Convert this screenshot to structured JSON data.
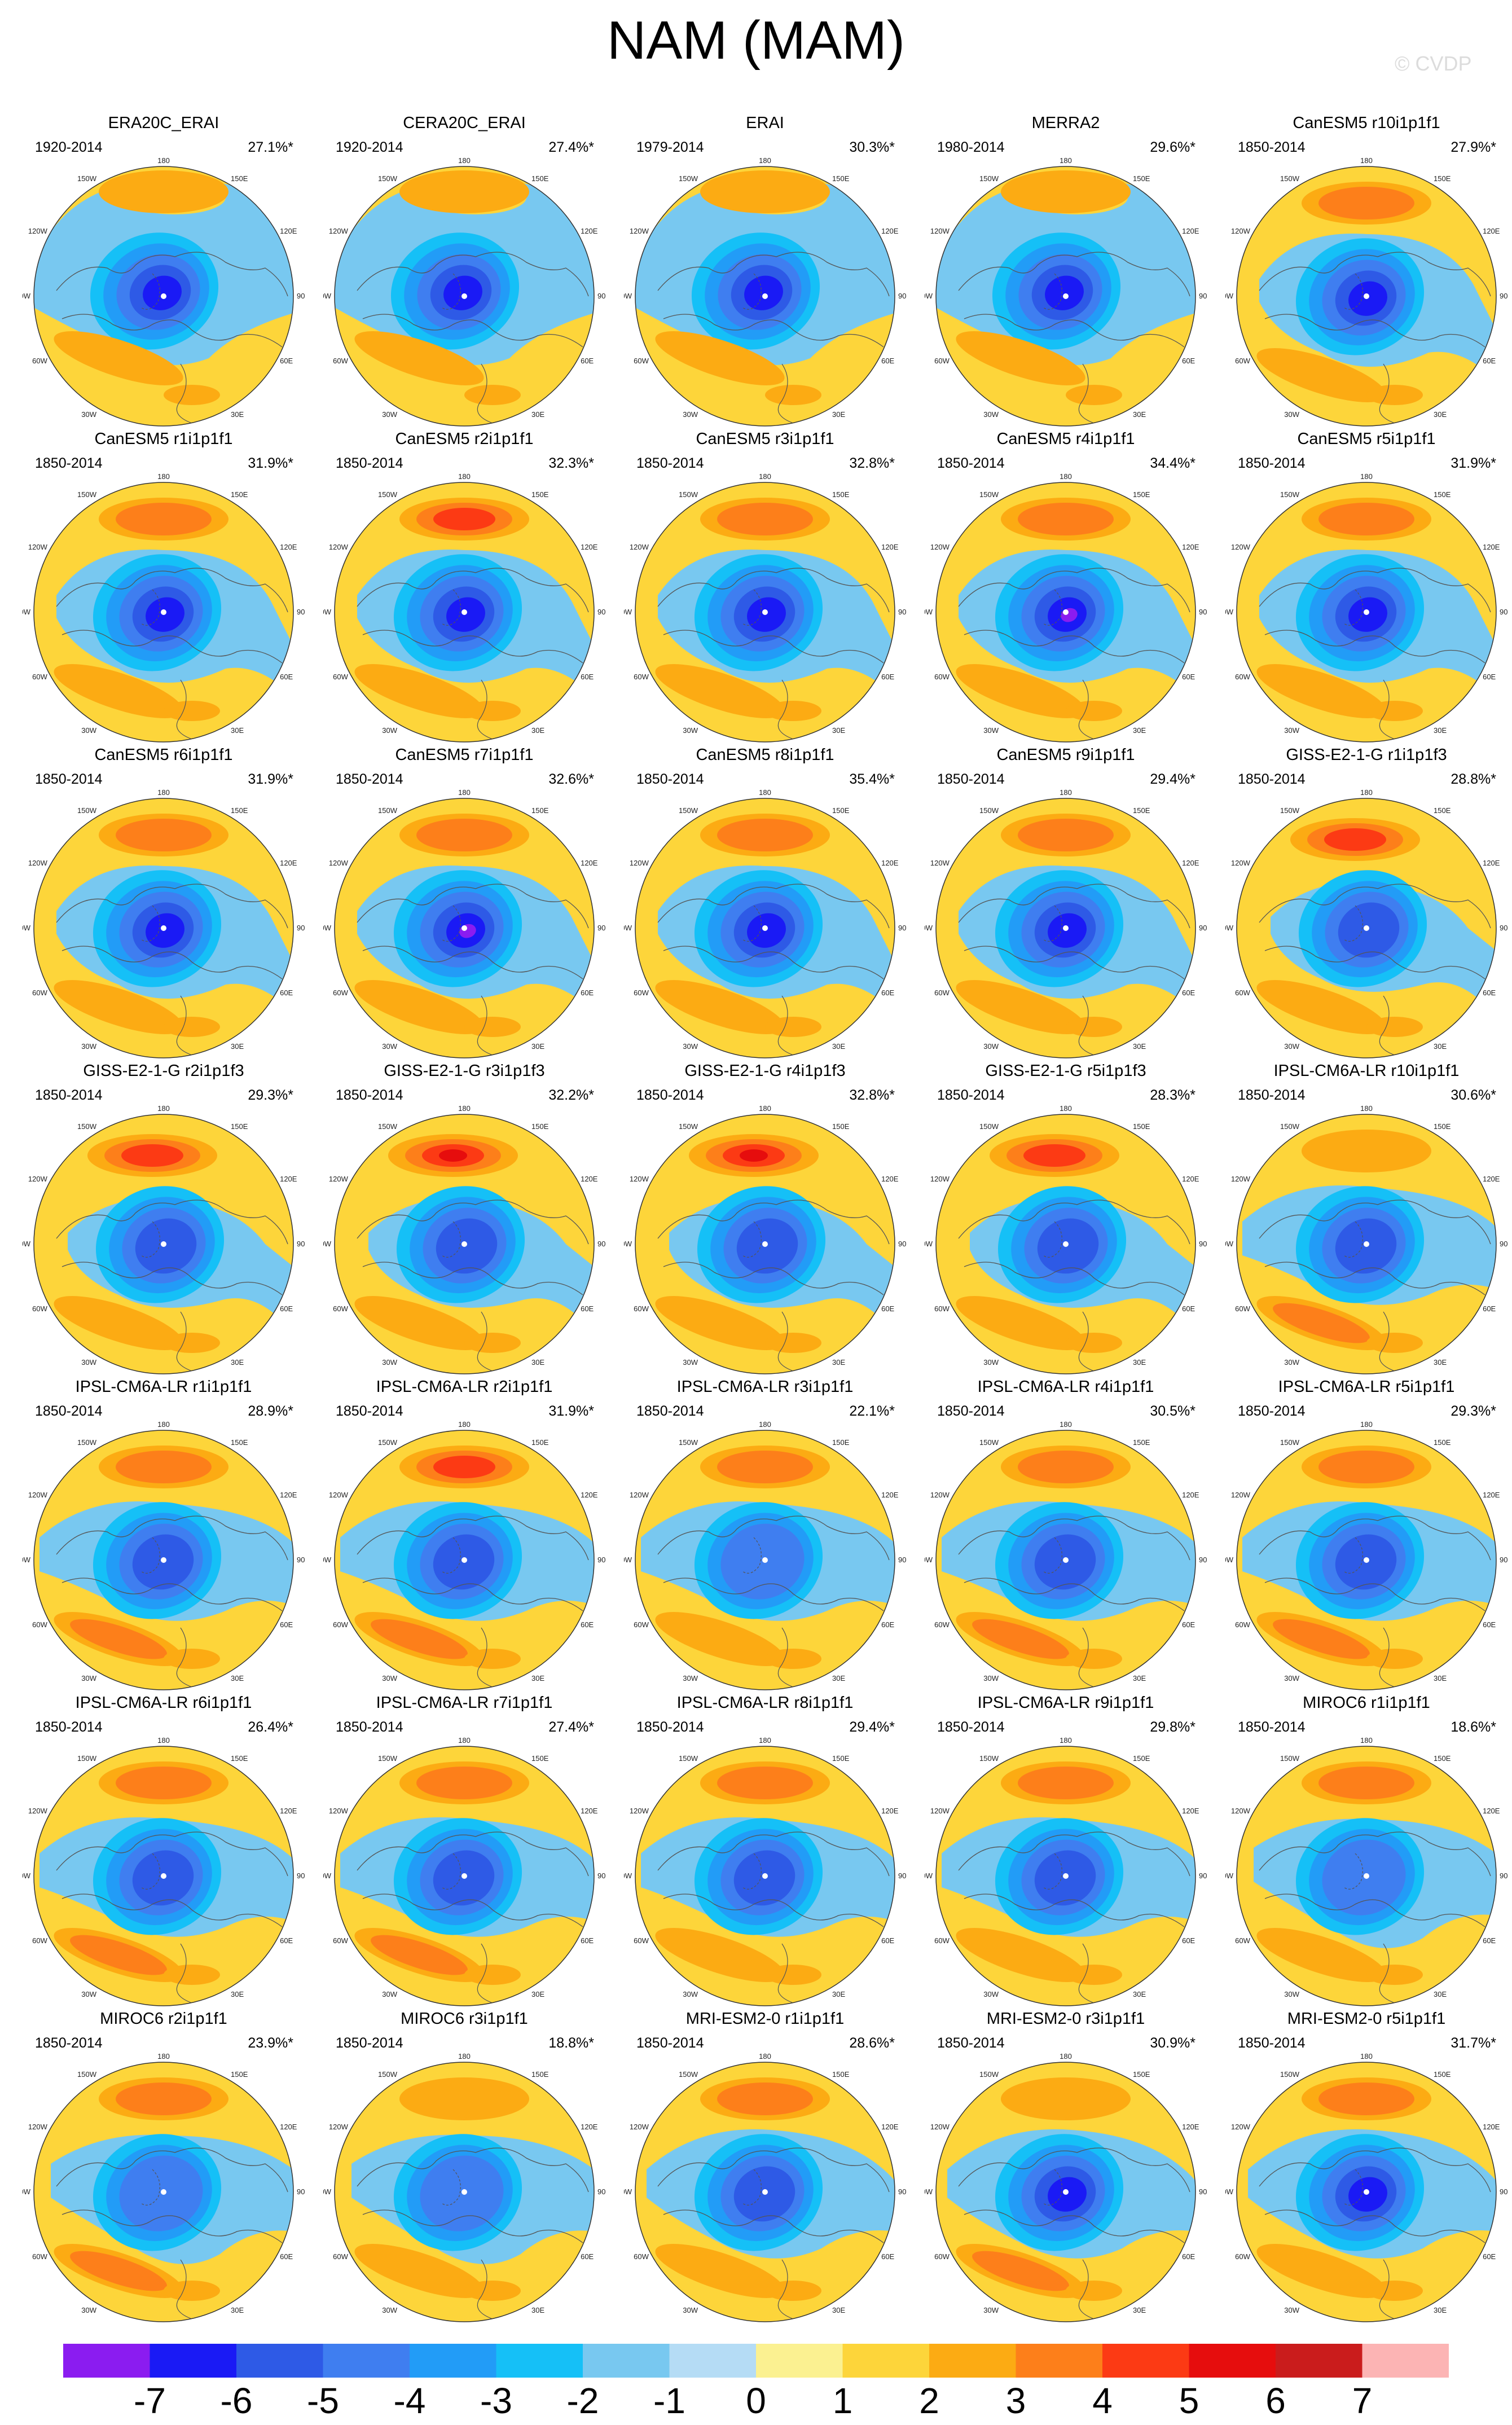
{
  "title": "NAM (MAM)",
  "watermark": "© CVDP",
  "map_labels": {
    "top": "180",
    "bottom": "0",
    "left": "90W",
    "right": "90E",
    "upper_left_1": "120W",
    "upper_left_2": "150W",
    "upper_right_1": "150E",
    "upper_right_2": "120E",
    "lower_left_1": "60W",
    "lower_left_2": "30W",
    "lower_right_1": "60E",
    "lower_right_2": "30E"
  },
  "colors": {
    "levels": [
      "#8b1cf0",
      "#1a1af5",
      "#2e5ae6",
      "#3f7ef0",
      "#229cf7",
      "#15c0f7",
      "#78c8f0",
      "#b5dcf5",
      "#fbf191",
      "#fdd53a",
      "#fcab13",
      "#fd7f1a",
      "#fc3a14",
      "#e60d0d",
      "#ca1c1c",
      "#fcb4b4"
    ],
    "contour": "#555555"
  },
  "colorbar": {
    "ticks": [
      "-7",
      "-6",
      "-5",
      "-4",
      "-3",
      "-2",
      "-1",
      "0",
      "1",
      "2",
      "3",
      "4",
      "5",
      "6",
      "7"
    ]
  },
  "panels": [
    {
      "name": "ERA20C_ERAI",
      "period": "1920-2014",
      "pct": "27.1%*",
      "core": -5,
      "pac": 1,
      "atl": 1,
      "shape": "obs"
    },
    {
      "name": "CERA20C_ERAI",
      "period": "1920-2014",
      "pct": "27.4%*",
      "core": -5,
      "pac": 1,
      "atl": 1,
      "shape": "obs"
    },
    {
      "name": "ERAI",
      "period": "1979-2014",
      "pct": "30.3%*",
      "core": -5,
      "pac": 1,
      "atl": 1,
      "shape": "obs"
    },
    {
      "name": "MERRA2",
      "period": "1980-2014",
      "pct": "29.6%*",
      "core": -5,
      "pac": 1,
      "atl": 1,
      "shape": "obs"
    },
    {
      "name": "CanESM5 r10i1p1f1",
      "period": "1850-2014",
      "pct": "27.9%*",
      "core": -5,
      "pac": 2,
      "atl": 1,
      "shape": "can"
    },
    {
      "name": "CanESM5 r1i1p1f1",
      "period": "1850-2014",
      "pct": "31.9%*",
      "core": -5,
      "pac": 2,
      "atl": 1,
      "shape": "can"
    },
    {
      "name": "CanESM5 r2i1p1f1",
      "period": "1850-2014",
      "pct": "32.3%*",
      "core": -5,
      "pac": 3,
      "atl": 1,
      "shape": "can"
    },
    {
      "name": "CanESM5 r3i1p1f1",
      "period": "1850-2014",
      "pct": "32.8%*",
      "core": -5,
      "pac": 2,
      "atl": 1,
      "shape": "can"
    },
    {
      "name": "CanESM5 r4i1p1f1",
      "period": "1850-2014",
      "pct": "34.4%*",
      "core": -6,
      "pac": 2,
      "atl": 1,
      "shape": "can"
    },
    {
      "name": "CanESM5 r5i1p1f1",
      "period": "1850-2014",
      "pct": "31.9%*",
      "core": -5,
      "pac": 2,
      "atl": 1,
      "shape": "can"
    },
    {
      "name": "CanESM5 r6i1p1f1",
      "period": "1850-2014",
      "pct": "31.9%*",
      "core": -5,
      "pac": 2,
      "atl": 1,
      "shape": "can"
    },
    {
      "name": "CanESM5 r7i1p1f1",
      "period": "1850-2014",
      "pct": "32.6%*",
      "core": -6,
      "pac": 2,
      "atl": 1,
      "shape": "can"
    },
    {
      "name": "CanESM5 r8i1p1f1",
      "period": "1850-2014",
      "pct": "35.4%*",
      "core": -5,
      "pac": 2,
      "atl": 1,
      "shape": "can"
    },
    {
      "name": "CanESM5 r9i1p1f1",
      "period": "1850-2014",
      "pct": "29.4%*",
      "core": -5,
      "pac": 2,
      "atl": 1,
      "shape": "can"
    },
    {
      "name": "GISS-E2-1-G r1i1p1f3",
      "period": "1850-2014",
      "pct": "28.8%*",
      "core": -4,
      "pac": 3,
      "atl": 1,
      "shape": "giss"
    },
    {
      "name": "GISS-E2-1-G r2i1p1f3",
      "period": "1850-2014",
      "pct": "29.3%*",
      "core": -4,
      "pac": 3,
      "atl": 1,
      "shape": "giss"
    },
    {
      "name": "GISS-E2-1-G r3i1p1f3",
      "period": "1850-2014",
      "pct": "32.2%*",
      "core": -4,
      "pac": 5,
      "atl": 1,
      "shape": "giss"
    },
    {
      "name": "GISS-E2-1-G r4i1p1f3",
      "period": "1850-2014",
      "pct": "32.8%*",
      "core": -4,
      "pac": 4,
      "atl": 1,
      "shape": "giss"
    },
    {
      "name": "GISS-E2-1-G r5i1p1f3",
      "period": "1850-2014",
      "pct": "28.3%*",
      "core": -4,
      "pac": 3,
      "atl": 1,
      "shape": "giss"
    },
    {
      "name": "IPSL-CM6A-LR r10i1p1f1",
      "period": "1850-2014",
      "pct": "30.6%*",
      "core": -4,
      "pac": 1,
      "atl": 2,
      "shape": "ipsl"
    },
    {
      "name": "IPSL-CM6A-LR r1i1p1f1",
      "period": "1850-2014",
      "pct": "28.9%*",
      "core": -4,
      "pac": 2,
      "atl": 2,
      "shape": "ipsl"
    },
    {
      "name": "IPSL-CM6A-LR r2i1p1f1",
      "period": "1850-2014",
      "pct": "31.9%*",
      "core": -4,
      "pac": 3,
      "atl": 2,
      "shape": "ipsl"
    },
    {
      "name": "IPSL-CM6A-LR r3i1p1f1",
      "period": "1850-2014",
      "pct": "22.1%*",
      "core": -3,
      "pac": 2,
      "atl": 1,
      "shape": "ipsl"
    },
    {
      "name": "IPSL-CM6A-LR r4i1p1f1",
      "period": "1850-2014",
      "pct": "30.5%*",
      "core": -4,
      "pac": 2,
      "atl": 2,
      "shape": "ipsl"
    },
    {
      "name": "IPSL-CM6A-LR r5i1p1f1",
      "period": "1850-2014",
      "pct": "29.3%*",
      "core": -4,
      "pac": 2,
      "atl": 2,
      "shape": "ipsl"
    },
    {
      "name": "IPSL-CM6A-LR r6i1p1f1",
      "period": "1850-2014",
      "pct": "26.4%*",
      "core": -4,
      "pac": 2,
      "atl": 2,
      "shape": "ipsl"
    },
    {
      "name": "IPSL-CM6A-LR r7i1p1f1",
      "period": "1850-2014",
      "pct": "27.4%*",
      "core": -4,
      "pac": 2,
      "atl": 2,
      "shape": "ipsl"
    },
    {
      "name": "IPSL-CM6A-LR r8i1p1f1",
      "period": "1850-2014",
      "pct": "29.4%*",
      "core": -4,
      "pac": 2,
      "atl": 1,
      "shape": "ipsl"
    },
    {
      "name": "IPSL-CM6A-LR r9i1p1f1",
      "period": "1850-2014",
      "pct": "29.8%*",
      "core": -4,
      "pac": 2,
      "atl": 1,
      "shape": "ipsl"
    },
    {
      "name": "MIROC6 r1i1p1f1",
      "period": "1850-2014",
      "pct": "18.6%*",
      "core": -3,
      "pac": 2,
      "atl": 1,
      "shape": "miroc"
    },
    {
      "name": "MIROC6 r2i1p1f1",
      "period": "1850-2014",
      "pct": "23.9%*",
      "core": -3,
      "pac": 2,
      "atl": 2,
      "shape": "miroc"
    },
    {
      "name": "MIROC6 r3i1p1f1",
      "period": "1850-2014",
      "pct": "18.8%*",
      "core": -3,
      "pac": 1,
      "atl": 1,
      "shape": "miroc"
    },
    {
      "name": "MRI-ESM2-0 r1i1p1f1",
      "period": "1850-2014",
      "pct": "28.6%*",
      "core": -4,
      "pac": 2,
      "atl": 1,
      "shape": "mri"
    },
    {
      "name": "MRI-ESM2-0 r3i1p1f1",
      "period": "1850-2014",
      "pct": "30.9%*",
      "core": -5,
      "pac": 1,
      "atl": 2,
      "shape": "mri"
    },
    {
      "name": "MRI-ESM2-0 r5i1p1f1",
      "period": "1850-2014",
      "pct": "31.7%*",
      "core": -5,
      "pac": 2,
      "atl": 1,
      "shape": "mri"
    }
  ]
}
